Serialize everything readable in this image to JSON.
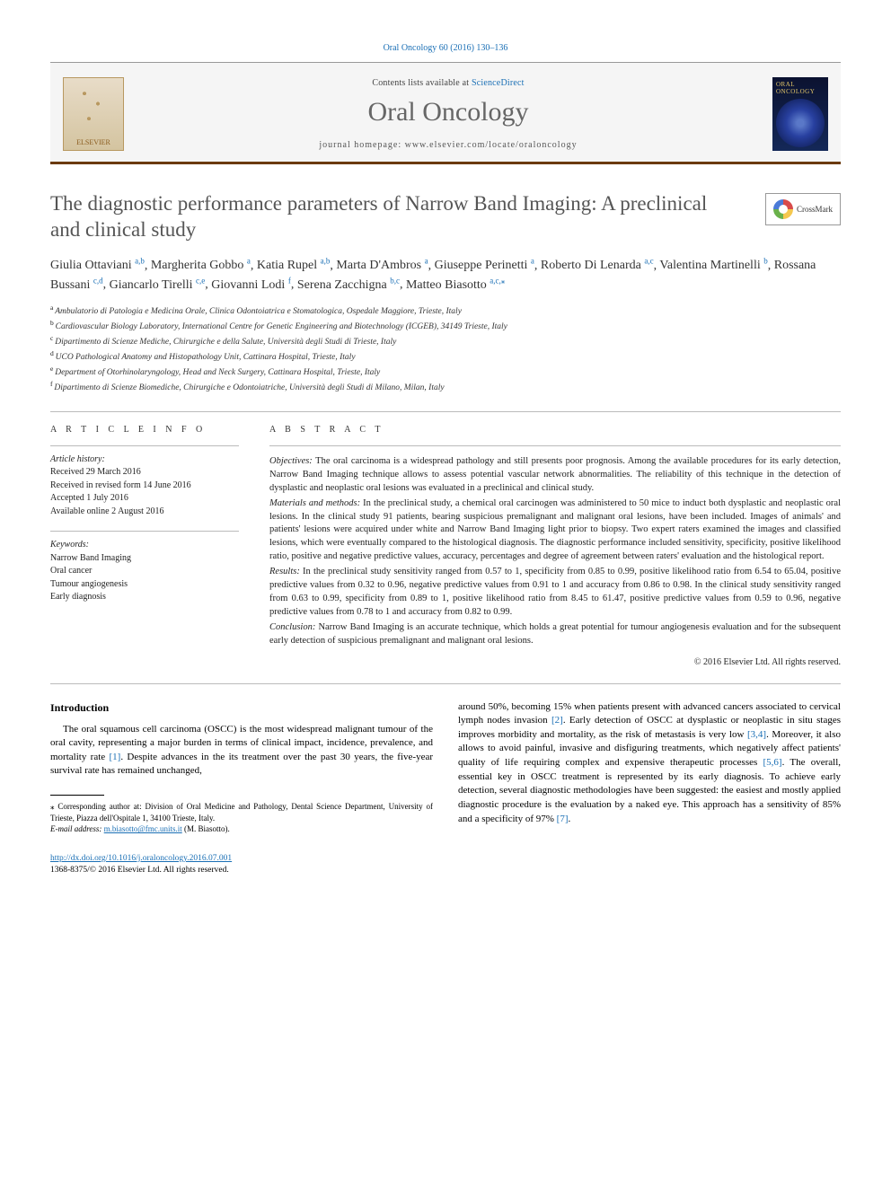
{
  "citation": "Oral Oncology 60 (2016) 130–136",
  "header": {
    "contents_prefix": "Contents lists available at ",
    "contents_link": "ScienceDirect",
    "journal": "Oral Oncology",
    "homepage_prefix": "journal homepage: ",
    "homepage_url": "www.elsevier.com/locate/oraloncology",
    "publisher_logo_text": "ELSEVIER",
    "cover_title": "ORAL ONCOLOGY"
  },
  "crossmark_label": "CrossMark",
  "title": "The diagnostic performance parameters of Narrow Band Imaging: A preclinical and clinical study",
  "authors": [
    {
      "name": "Giulia Ottaviani",
      "aff": "a,b"
    },
    {
      "name": "Margherita Gobbo",
      "aff": "a"
    },
    {
      "name": "Katia Rupel",
      "aff": "a,b"
    },
    {
      "name": "Marta D'Ambros",
      "aff": "a"
    },
    {
      "name": "Giuseppe Perinetti",
      "aff": "a"
    },
    {
      "name": "Roberto Di Lenarda",
      "aff": "a,c"
    },
    {
      "name": "Valentina Martinelli",
      "aff": "b"
    },
    {
      "name": "Rossana Bussani",
      "aff": "c,d"
    },
    {
      "name": "Giancarlo Tirelli",
      "aff": "c,e"
    },
    {
      "name": "Giovanni Lodi",
      "aff": "f"
    },
    {
      "name": "Serena Zacchigna",
      "aff": "b,c"
    },
    {
      "name": "Matteo Biasotto",
      "aff": "a,c,",
      "corr": true
    }
  ],
  "affiliations": [
    {
      "key": "a",
      "text": "Ambulatorio di Patologia e Medicina Orale, Clinica Odontoiatrica e Stomatologica, Ospedale Maggiore, Trieste, Italy"
    },
    {
      "key": "b",
      "text": "Cardiovascular Biology Laboratory, International Centre for Genetic Engineering and Biotechnology (ICGEB), 34149 Trieste, Italy"
    },
    {
      "key": "c",
      "text": "Dipartimento di Scienze Mediche, Chirurgiche e della Salute, Università degli Studi di Trieste, Italy"
    },
    {
      "key": "d",
      "text": "UCO Pathological Anatomy and Histopathology Unit, Cattinara Hospital, Trieste, Italy"
    },
    {
      "key": "e",
      "text": "Department of Otorhinolaryngology, Head and Neck Surgery, Cattinara Hospital, Trieste, Italy"
    },
    {
      "key": "f",
      "text": "Dipartimento di Scienze Biomediche, Chirurgiche e Odontoiatriche, Università degli Studi di Milano, Milan, Italy"
    }
  ],
  "article_info_label": "A R T I C L E   I N F O",
  "abstract_label": "A B S T R A C T",
  "history_label": "Article history:",
  "history": [
    "Received 29 March 2016",
    "Received in revised form 14 June 2016",
    "Accepted 1 July 2016",
    "Available online 2 August 2016"
  ],
  "keywords_label": "Keywords:",
  "keywords": [
    "Narrow Band Imaging",
    "Oral cancer",
    "Tumour angiogenesis",
    "Early diagnosis"
  ],
  "abstract": {
    "objectives": "The oral carcinoma is a widespread pathology and still presents poor prognosis. Among the available procedures for its early detection, Narrow Band Imaging technique allows to assess potential vascular network abnormalities. The reliability of this technique in the detection of dysplastic and neoplastic oral lesions was evaluated in a preclinical and clinical study.",
    "methods": "In the preclinical study, a chemical oral carcinogen was administered to 50 mice to induct both dysplastic and neoplastic oral lesions. In the clinical study 91 patients, bearing suspicious premalignant and malignant oral lesions, have been included. Images of animals' and patients' lesions were acquired under white and Narrow Band Imaging light prior to biopsy. Two expert raters examined the images and classified lesions, which were eventually compared to the histological diagnosis. The diagnostic performance included sensitivity, specificity, positive likelihood ratio, positive and negative predictive values, accuracy, percentages and degree of agreement between raters' evaluation and the histological report.",
    "results": "In the preclinical study sensitivity ranged from 0.57 to 1, specificity from 0.85 to 0.99, positive likelihood ratio from 6.54 to 65.04, positive predictive values from 0.32 to 0.96, negative predictive values from 0.91 to 1 and accuracy from 0.86 to 0.98. In the clinical study sensitivity ranged from 0.63 to 0.99, specificity from 0.89 to 1, positive likelihood ratio from 8.45 to 61.47, positive predictive values from 0.59 to 0.96, negative predictive values from 0.78 to 1 and accuracy from 0.82 to 0.99.",
    "conclusion": "Narrow Band Imaging is an accurate technique, which holds a great potential for tumour angiogenesis evaluation and for the subsequent early detection of suspicious premalignant and malignant oral lesions.",
    "copyright": "© 2016 Elsevier Ltd. All rights reserved."
  },
  "abstract_headings": {
    "objectives": "Objectives:",
    "methods": "Materials and methods:",
    "results": "Results:",
    "conclusion": "Conclusion:"
  },
  "intro_heading": "Introduction",
  "intro_para1_a": "The oral squamous cell carcinoma (OSCC) is the most widespread malignant tumour of the oral cavity, representing a major burden in terms of clinical impact, incidence, prevalence, and mortality rate ",
  "intro_para1_b": ". Despite advances in the its treatment over the past 30 years, the five-year survival rate has remained unchanged,",
  "intro_para2_a": "around 50%, becoming 15% when patients present with advanced cancers associated to cervical lymph nodes invasion ",
  "intro_para2_b": ". Early detection of OSCC at dysplastic or neoplastic in situ stages improves morbidity and mortality, as the risk of metastasis is very low ",
  "intro_para2_c": ". Moreover, it also allows to avoid painful, invasive and disfiguring treatments, which negatively affect patients' quality of life requiring complex and expensive therapeutic processes ",
  "intro_para2_d": ". The overall, essential key in OSCC treatment is represented by its early diagnosis. To achieve early detection, several diagnostic methodologies have been suggested: the easiest and mostly applied diagnostic procedure is the evaluation by a naked eye. This approach has a sensitivity of 85% and a specificity of 97% ",
  "intro_para2_e": ".",
  "refs": {
    "r1": "[1]",
    "r2": "[2]",
    "r34": "[3,4]",
    "r56": "[5,6]",
    "r7": "[7]"
  },
  "footnote": {
    "corr_label": "⁎ Corresponding author at: ",
    "corr_text": "Division of Oral Medicine and Pathology, Dental Science Department, University of Trieste, Piazza dell'Ospitale 1, 34100 Trieste, Italy.",
    "email_label": "E-mail address:",
    "email": "m.biasotto@fmc.units.it",
    "email_name": " (M. Biasotto)."
  },
  "bottom": {
    "doi": "http://dx.doi.org/10.1016/j.oraloncology.2016.07.001",
    "issn_line": "1368-8375/© 2016 Elsevier Ltd. All rights reserved."
  },
  "colors": {
    "link": "#1a6fb5",
    "rule": "#6b3a0e",
    "title_grey": "#555555"
  }
}
